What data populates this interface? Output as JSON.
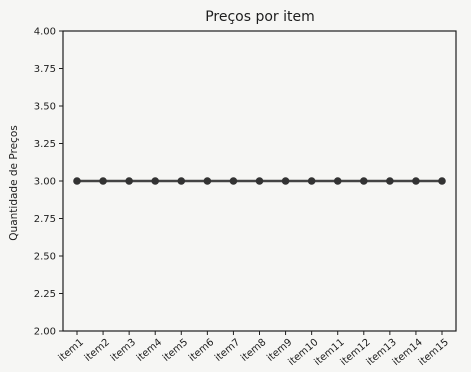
{
  "chart_data": {
    "type": "line",
    "title": "Preços por item",
    "xlabel": "",
    "ylabel": "Quantidade de Preços",
    "categories": [
      "item1",
      "item2",
      "item3",
      "item4",
      "item5",
      "item6",
      "item7",
      "item8",
      "item9",
      "item10",
      "item11",
      "item12",
      "item13",
      "item14",
      "item15"
    ],
    "series": [
      {
        "values": [
          3.0,
          3.0,
          3.0,
          3.0,
          3.0,
          3.0,
          3.0,
          3.0,
          3.0,
          3.0,
          3.0,
          3.0,
          3.0,
          3.0,
          3.0
        ]
      }
    ],
    "ylim": [
      2.0,
      4.0
    ],
    "yticks": [
      "2.00",
      "2.25",
      "2.50",
      "2.75",
      "3.00",
      "3.25",
      "3.50",
      "3.75",
      "4.00"
    ],
    "grid": false,
    "legend": "none",
    "colors": {
      "line": "#444444",
      "marker": "#333333",
      "axis": "#1e1e1e",
      "background": "#f6f6f4"
    }
  }
}
